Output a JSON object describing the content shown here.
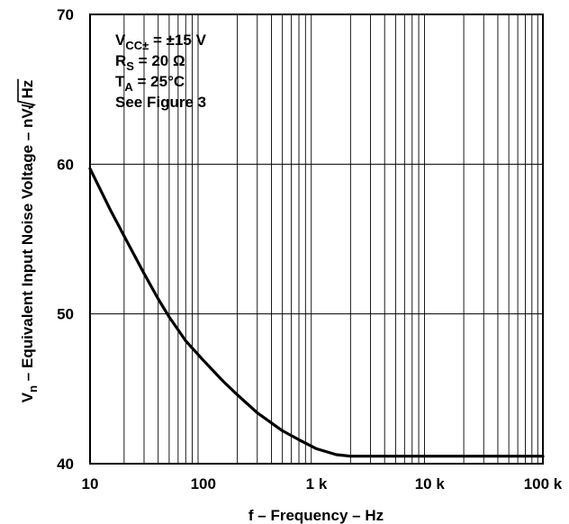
{
  "chart_data": {
    "type": "line",
    "xlabel": "f – Frequency – Hz",
    "ylabel": {
      "symbol": "V",
      "symbol_sub": "n",
      "text": "– Equivalent Input Noise Voltage –",
      "unit_prefix": "nV/",
      "unit_root": "Hz"
    },
    "xscale": "log",
    "xlim": [
      10,
      100000
    ],
    "ylim": [
      40,
      70
    ],
    "grid": true,
    "x_ticks": [
      {
        "value": 10,
        "label": "10"
      },
      {
        "value": 100,
        "label": "100"
      },
      {
        "value": 1000,
        "label": "1 k"
      },
      {
        "value": 10000,
        "label": "10 k"
      },
      {
        "value": 100000,
        "label": "100 k"
      }
    ],
    "y_ticks": [
      {
        "value": 40,
        "label": "40"
      },
      {
        "value": 50,
        "label": "50"
      },
      {
        "value": 60,
        "label": "60"
      },
      {
        "value": 70,
        "label": "70"
      }
    ],
    "annotations": [
      {
        "main": "V",
        "sub": "CC±",
        "rest": " = ±15 V"
      },
      {
        "main": "R",
        "sub": "S",
        "rest": " = 20 Ω"
      },
      {
        "main": "T",
        "sub": "A",
        "rest": " = 25°C"
      },
      {
        "main": "See Figure 3",
        "sub": "",
        "rest": ""
      }
    ],
    "series": [
      {
        "x": [
          10,
          15,
          20,
          30,
          40,
          50,
          70,
          100,
          150,
          200,
          300,
          500,
          700,
          1000,
          1500,
          2000,
          3000,
          5000,
          10000,
          20000,
          50000,
          100000
        ],
        "y": [
          59.7,
          57.0,
          55.2,
          52.7,
          51.0,
          49.8,
          48.2,
          46.9,
          45.5,
          44.6,
          43.4,
          42.2,
          41.6,
          41.0,
          40.6,
          40.5,
          40.5,
          40.5,
          40.5,
          40.5,
          40.5,
          40.5
        ]
      }
    ]
  }
}
